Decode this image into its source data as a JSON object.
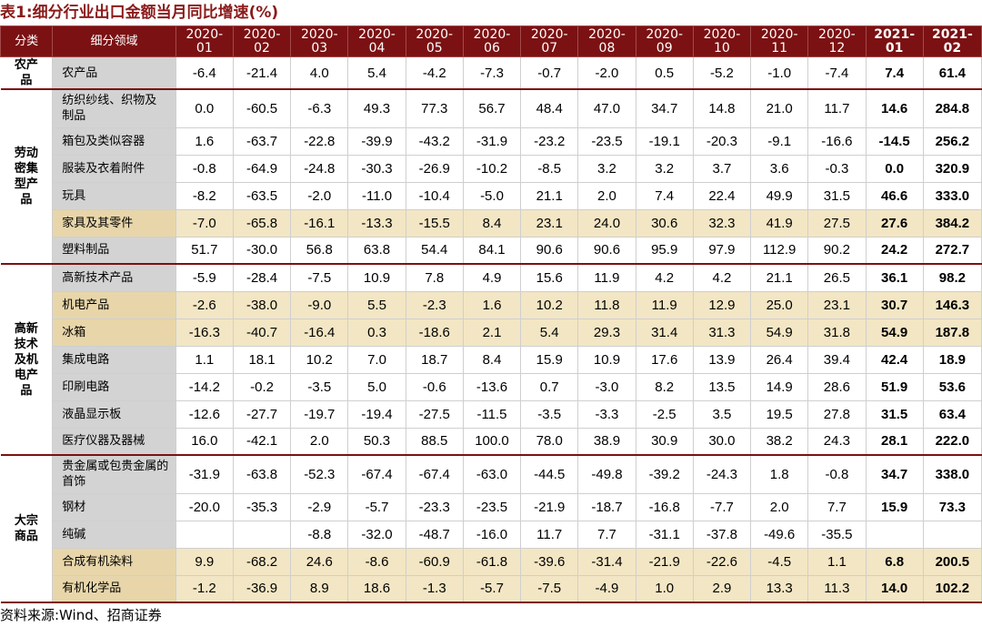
{
  "title": "表1:细分行业出口金额当月同比增速(%)",
  "header": {
    "category": "分类",
    "subcategory": "细分领域",
    "months": [
      "2020-01",
      "2020-02",
      "2020-03",
      "2020-04",
      "2020-05",
      "2020-06",
      "2020-07",
      "2020-08",
      "2020-09",
      "2020-10",
      "2020-11",
      "2020-12",
      "2021-01",
      "2021-02"
    ]
  },
  "groups": [
    {
      "category": "农产品",
      "rows": [
        {
          "name": "农产品",
          "values": [
            "-6.4",
            "-21.4",
            "4.0",
            "5.4",
            "-4.2",
            "-7.3",
            "-0.7",
            "-2.0",
            "0.5",
            "-5.2",
            "-1.0",
            "-7.4",
            "7.4",
            "61.4"
          ],
          "highlight": false,
          "tall": false
        }
      ]
    },
    {
      "category": "劳动密集型产品",
      "rows": [
        {
          "name": "纺织纱线、织物及制品",
          "values": [
            "0.0",
            "-60.5",
            "-6.3",
            "49.3",
            "77.3",
            "56.7",
            "48.4",
            "47.0",
            "34.7",
            "14.8",
            "21.0",
            "11.7",
            "14.6",
            "284.8"
          ],
          "highlight": false,
          "tall": true
        },
        {
          "name": "箱包及类似容器",
          "values": [
            "1.6",
            "-63.7",
            "-22.8",
            "-39.9",
            "-43.2",
            "-31.9",
            "-23.2",
            "-23.5",
            "-19.1",
            "-20.3",
            "-9.1",
            "-16.6",
            "-14.5",
            "256.2"
          ],
          "highlight": false,
          "tall": false
        },
        {
          "name": "服装及衣着附件",
          "values": [
            "-0.8",
            "-64.9",
            "-24.8",
            "-30.3",
            "-26.9",
            "-10.2",
            "-8.5",
            "3.2",
            "3.2",
            "3.7",
            "3.6",
            "-0.3",
            "0.0",
            "320.9"
          ],
          "highlight": false,
          "tall": false
        },
        {
          "name": "玩具",
          "values": [
            "-8.2",
            "-63.5",
            "-2.0",
            "-11.0",
            "-10.4",
            "-5.0",
            "21.1",
            "2.0",
            "7.4",
            "22.4",
            "49.9",
            "31.5",
            "46.6",
            "333.0"
          ],
          "highlight": false,
          "tall": false
        },
        {
          "name": "家具及其零件",
          "values": [
            "-7.0",
            "-65.8",
            "-16.1",
            "-13.3",
            "-15.5",
            "8.4",
            "23.1",
            "24.0",
            "30.6",
            "32.3",
            "41.9",
            "27.5",
            "27.6",
            "384.2"
          ],
          "highlight": true,
          "tall": false
        },
        {
          "name": "塑料制品",
          "values": [
            "51.7",
            "-30.0",
            "56.8",
            "63.8",
            "54.4",
            "84.1",
            "90.6",
            "90.6",
            "95.9",
            "97.9",
            "112.9",
            "90.2",
            "24.2",
            "272.7"
          ],
          "highlight": false,
          "tall": false
        }
      ]
    },
    {
      "category": "高新技术及机电产品",
      "rows": [
        {
          "name": "高新技术产品",
          "values": [
            "-5.9",
            "-28.4",
            "-7.5",
            "10.9",
            "7.8",
            "4.9",
            "15.6",
            "11.9",
            "4.2",
            "4.2",
            "21.1",
            "26.5",
            "36.1",
            "98.2"
          ],
          "highlight": false,
          "tall": false
        },
        {
          "name": "机电产品",
          "values": [
            "-2.6",
            "-38.0",
            "-9.0",
            "5.5",
            "-2.3",
            "1.6",
            "10.2",
            "11.8",
            "11.9",
            "12.9",
            "25.0",
            "23.1",
            "30.7",
            "146.3"
          ],
          "highlight": true,
          "tall": false
        },
        {
          "name": "冰箱",
          "values": [
            "-16.3",
            "-40.7",
            "-16.4",
            "0.3",
            "-18.6",
            "2.1",
            "5.4",
            "29.3",
            "31.4",
            "31.3",
            "54.9",
            "31.8",
            "54.9",
            "187.8"
          ],
          "highlight": true,
          "tall": false
        },
        {
          "name": "集成电路",
          "values": [
            "1.1",
            "18.1",
            "10.2",
            "7.0",
            "18.7",
            "8.4",
            "15.9",
            "10.9",
            "17.6",
            "13.9",
            "26.4",
            "39.4",
            "42.4",
            "18.9"
          ],
          "highlight": false,
          "tall": false
        },
        {
          "name": "印刷电路",
          "values": [
            "-14.2",
            "-0.2",
            "-3.5",
            "5.0",
            "-0.6",
            "-13.6",
            "0.7",
            "-3.0",
            "8.2",
            "13.5",
            "14.9",
            "28.6",
            "51.9",
            "53.6"
          ],
          "highlight": false,
          "tall": false
        },
        {
          "name": "液晶显示板",
          "values": [
            "-12.6",
            "-27.7",
            "-19.7",
            "-19.4",
            "-27.5",
            "-11.5",
            "-3.5",
            "-3.3",
            "-2.5",
            "3.5",
            "19.5",
            "27.8",
            "31.5",
            "63.4"
          ],
          "highlight": false,
          "tall": false
        },
        {
          "name": "医疗仪器及器械",
          "values": [
            "16.0",
            "-42.1",
            "2.0",
            "50.3",
            "88.5",
            "100.0",
            "78.0",
            "38.9",
            "30.9",
            "30.0",
            "38.2",
            "24.3",
            "28.1",
            "222.0"
          ],
          "highlight": false,
          "tall": false
        }
      ]
    },
    {
      "category": "大宗商品",
      "rows": [
        {
          "name": "贵金属或包贵金属的首饰",
          "values": [
            "-31.9",
            "-63.8",
            "-52.3",
            "-67.4",
            "-67.4",
            "-63.0",
            "-44.5",
            "-49.8",
            "-39.2",
            "-24.3",
            "1.8",
            "-0.8",
            "34.7",
            "338.0"
          ],
          "highlight": false,
          "tall": true
        },
        {
          "name": "钢材",
          "values": [
            "-20.0",
            "-35.3",
            "-2.9",
            "-5.7",
            "-23.3",
            "-23.5",
            "-21.9",
            "-18.7",
            "-16.8",
            "-7.7",
            "2.0",
            "7.7",
            "15.9",
            "73.3"
          ],
          "highlight": false,
          "tall": false
        },
        {
          "name": "纯碱",
          "values": [
            "",
            "",
            "-8.8",
            "-32.0",
            "-48.7",
            "-16.0",
            "11.7",
            "7.7",
            "-31.1",
            "-37.8",
            "-49.6",
            "-35.5",
            "",
            ""
          ],
          "highlight": false,
          "tall": false
        },
        {
          "name": "合成有机染料",
          "values": [
            "9.9",
            "-68.2",
            "24.6",
            "-8.6",
            "-60.9",
            "-61.8",
            "-39.6",
            "-31.4",
            "-21.9",
            "-22.6",
            "-4.5",
            "1.1",
            "6.8",
            "200.5"
          ],
          "highlight": true,
          "tall": false
        },
        {
          "name": "有机化学品",
          "values": [
            "-1.2",
            "-36.9",
            "8.9",
            "18.6",
            "-1.3",
            "-5.7",
            "-7.5",
            "-4.9",
            "1.0",
            "2.9",
            "13.3",
            "11.3",
            "14.0",
            "102.2"
          ],
          "highlight": true,
          "tall": false
        }
      ]
    }
  ],
  "source": "资料来源:Wind、招商证券",
  "colors": {
    "header_bg": "#7b1113",
    "title": "#8b1a1a",
    "highlight": "#f3e6c4",
    "subcategory_bg": "#d3d3d3"
  }
}
